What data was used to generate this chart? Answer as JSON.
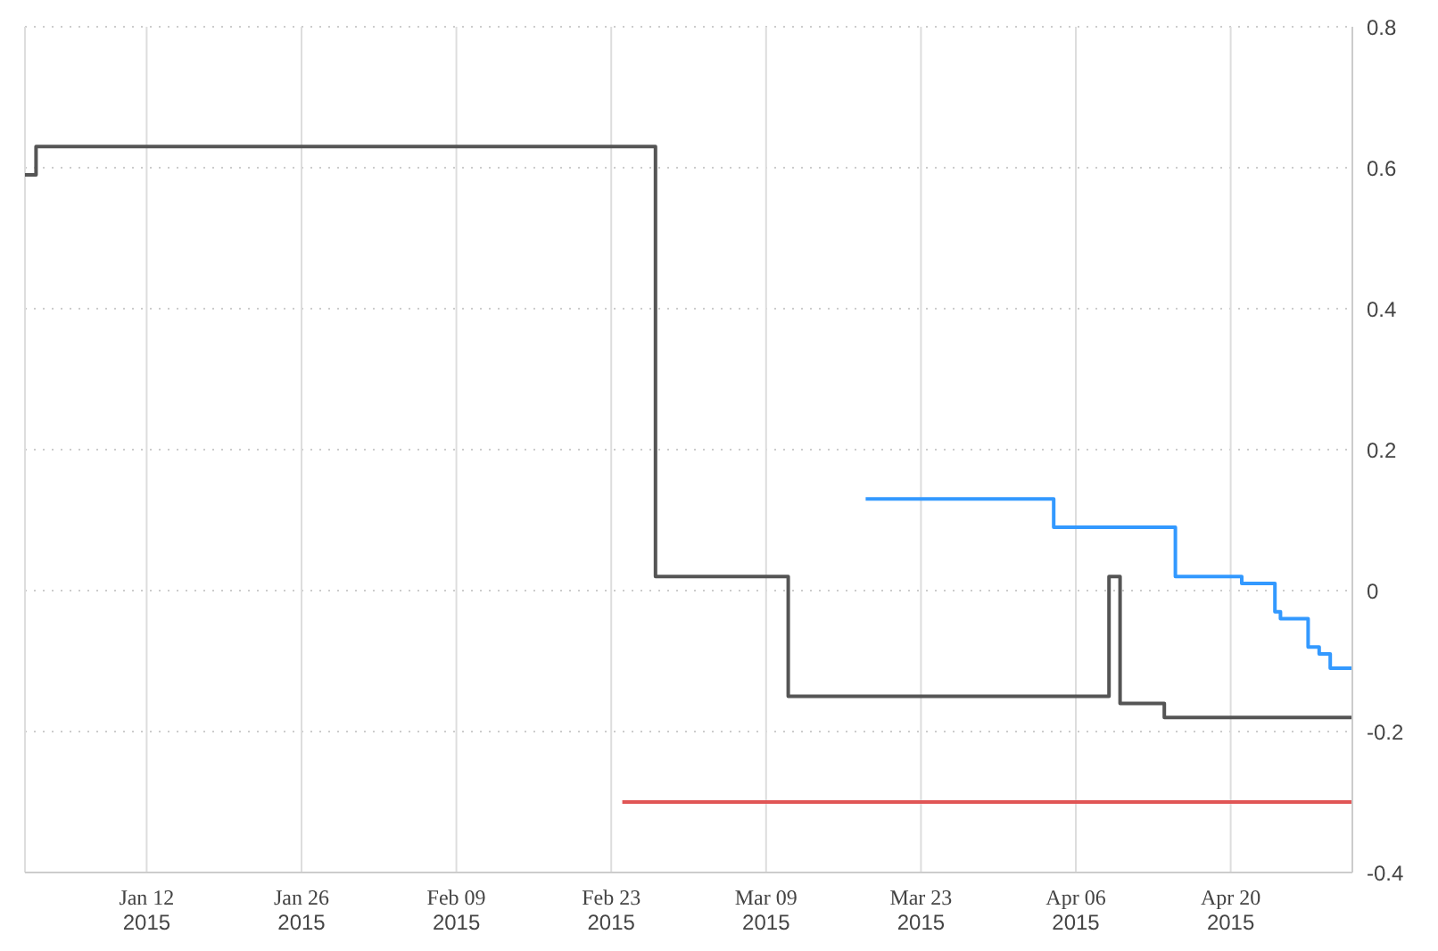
{
  "chart_data": {
    "type": "step",
    "xlim": [
      "2015-01-01",
      "2015-05-01"
    ],
    "xticks": [
      {
        "value": "2015-01-12",
        "label": "Jan 12\n2015"
      },
      {
        "value": "2015-01-26",
        "label": "Jan 26\n2015"
      },
      {
        "value": "2015-02-09",
        "label": "Feb 09\n2015"
      },
      {
        "value": "2015-02-23",
        "label": "Feb 23\n2015"
      },
      {
        "value": "2015-03-09",
        "label": "Mar 09\n2015"
      },
      {
        "value": "2015-03-23",
        "label": "Mar 23\n2015"
      },
      {
        "value": "2015-04-06",
        "label": "Apr 06\n2015"
      },
      {
        "value": "2015-04-20",
        "label": "Apr 20\n2015"
      }
    ],
    "ylim": [
      -0.4,
      0.8
    ],
    "yticks": [
      -0.4,
      -0.2,
      0,
      0.2,
      0.4,
      0.6,
      0.8
    ],
    "grid": true,
    "series": [
      {
        "color": "#555555",
        "x": [
          "2015-01-01",
          "2015-01-02",
          "2015-02-27",
          "2015-03-11",
          "2015-04-09",
          "2015-04-10",
          "2015-04-14",
          "2015-05-01"
        ],
        "values": [
          0.59,
          0.63,
          0.02,
          -0.15,
          0.02,
          -0.16,
          -0.18,
          -0.18
        ]
      },
      {
        "color": "#3399ff",
        "x": [
          "2015-03-18",
          "2015-04-04",
          "2015-04-15",
          "2015-04-21",
          "2015-04-24",
          "2015-04-24T12:00",
          "2015-04-27",
          "2015-04-28",
          "2015-04-29",
          "2015-05-01"
        ],
        "values": [
          0.13,
          0.09,
          0.02,
          0.01,
          -0.03,
          -0.04,
          -0.08,
          -0.09,
          -0.11,
          -0.11
        ]
      },
      {
        "type": "line",
        "color": "#e05555",
        "x": [
          "2015-02-24",
          "2015-05-01"
        ],
        "values": [
          -0.3,
          -0.3
        ]
      }
    ]
  }
}
